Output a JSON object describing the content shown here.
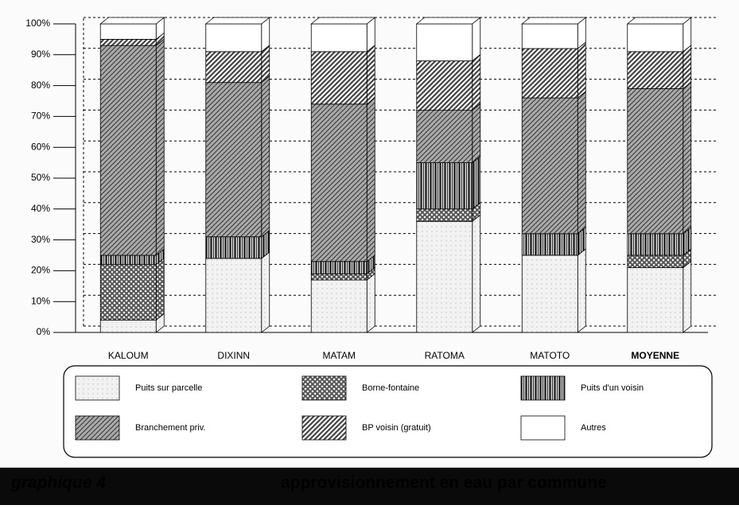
{
  "chart_data": {
    "type": "bar",
    "stacked": true,
    "figure_label": "graphique 4",
    "title": "approvisionnement en eau par commune",
    "categories": [
      "KALOUM",
      "DIXINN",
      "MATAM",
      "RATOMA",
      "MATOTO",
      "MOYENNE"
    ],
    "series": [
      {
        "name": "Puits sur parcelle",
        "color": "#f2f2f2",
        "pattern": "dots",
        "values": [
          4,
          24,
          17,
          36,
          25,
          21
        ]
      },
      {
        "name": "Borne-fontaine",
        "color": "#555555",
        "pattern": "cross",
        "values": [
          18,
          0,
          2,
          4,
          0,
          4
        ]
      },
      {
        "name": "Puits d'un voisin",
        "color": "#222222",
        "pattern": "vertical",
        "values": [
          3,
          7,
          4,
          15,
          7,
          7
        ]
      },
      {
        "name": "Branchement priv.",
        "color": "#aaaaaa",
        "pattern": "diagonal",
        "values": [
          68,
          50,
          51,
          17,
          44,
          47
        ]
      },
      {
        "name": "BP voisin (gratuit)",
        "color": "#444444",
        "pattern": "diagonal-dense",
        "values": [
          2,
          10,
          17,
          16,
          16,
          12
        ]
      },
      {
        "name": "Autres",
        "color": "#ffffff",
        "pattern": "none",
        "values": [
          5,
          9,
          9,
          12,
          8,
          9
        ]
      }
    ],
    "ylim": [
      0,
      100
    ],
    "yticks": [
      {
        "value": 0,
        "label": "0%"
      },
      {
        "value": 10,
        "label": "10%"
      },
      {
        "value": 20,
        "label": "20%"
      },
      {
        "value": 30,
        "label": "30%"
      },
      {
        "value": 40,
        "label": "40%"
      },
      {
        "value": 50,
        "label": "50%"
      },
      {
        "value": 60,
        "label": "60%"
      },
      {
        "value": 70,
        "label": "70%"
      },
      {
        "value": 80,
        "label": "80%"
      },
      {
        "value": 90,
        "label": "90%"
      },
      {
        "value": 100,
        "label": "100%"
      }
    ],
    "grid": true,
    "legend": "bottom"
  }
}
